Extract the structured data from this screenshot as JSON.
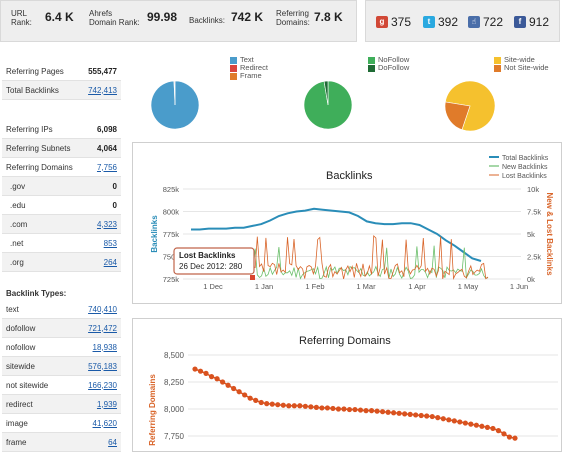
{
  "metrics": {
    "url_rank": {
      "label1": "URL",
      "label2": "Rank:",
      "value": "6.4 K"
    },
    "domain_rank": {
      "label1": "Ahrefs",
      "label2": "Domain Rank:",
      "value": "99.98"
    },
    "backlinks": {
      "label": "Backlinks:",
      "value": "742 K"
    },
    "ref_domains": {
      "label1": "Referring",
      "label2": "Domains:",
      "value": "7.8 K"
    }
  },
  "social": {
    "google": "375",
    "twitter": "392",
    "like": "722",
    "facebook": "912",
    "colors": {
      "google": "#d14836",
      "twitter": "#2aa9e0",
      "like": "#4a6ea9",
      "facebook": "#3b5998"
    }
  },
  "summary_table": [
    {
      "label": "Referring Pages",
      "value": "555,477",
      "link": false
    },
    {
      "label": "Total Backlinks",
      "value": "742,413",
      "link": true
    }
  ],
  "ip_table": [
    {
      "label": "Referring IPs",
      "value": "6,098",
      "link": false
    },
    {
      "label": "Referring Subnets",
      "value": "4,064",
      "link": false
    },
    {
      "label": "Referring Domains",
      "value": "7,756",
      "link": true
    },
    {
      "label": ".gov",
      "value": "0",
      "link": false
    },
    {
      "label": ".edu",
      "value": "0",
      "link": false
    },
    {
      "label": ".com",
      "value": "4,323",
      "link": true
    },
    {
      "label": ".net",
      "value": "853",
      "link": true
    },
    {
      "label": ".org",
      "value": "264",
      "link": true
    }
  ],
  "types_title": "Backlink Types:",
  "types_table": [
    {
      "label": "text",
      "value": "740,410"
    },
    {
      "label": "dofollow",
      "value": "721,472"
    },
    {
      "label": "nofollow",
      "value": "18,938"
    },
    {
      "label": "sitewide",
      "value": "576,183"
    },
    {
      "label": "not sitewide",
      "value": "166,230"
    },
    {
      "label": "redirect",
      "value": "1,939"
    },
    {
      "label": "image",
      "value": "41,620"
    },
    {
      "label": "frame",
      "value": "64"
    }
  ],
  "pies": {
    "legend1": [
      {
        "label": "Text",
        "color": "#4a9ccb"
      },
      {
        "label": "Redirect",
        "color": "#d9453d"
      },
      {
        "label": "Frame",
        "color": "#e07b2a"
      }
    ],
    "legend2": [
      {
        "label": "NoFollow",
        "color": "#3fae5a"
      },
      {
        "label": "DoFollow",
        "color": "#1f6b35"
      }
    ],
    "legend3": [
      {
        "label": "Site-wide",
        "color": "#f5c12e"
      },
      {
        "label": "Not Site-wide",
        "color": "#e07b2a"
      }
    ],
    "pie1_fractions": [
      0.993,
      0.005,
      0.002
    ],
    "pie2_fractions": [
      0.974,
      0.026
    ],
    "pie3_fractions": [
      0.776,
      0.224
    ]
  },
  "backlinks_chart": {
    "title": "Backlinks",
    "ylabel_left": "Backlinks",
    "ylabel_right": "New & Lost Backlinks",
    "left_ticks": [
      "825k",
      "800k",
      "775k",
      "750k",
      "725k"
    ],
    "right_ticks": [
      "10k",
      "7.5k",
      "5k",
      "2.5k",
      "0k"
    ],
    "x_ticks": [
      "1 Dec",
      "1 Jan",
      "1 Feb",
      "1 Mar",
      "1 Apr",
      "1 May",
      "1 Jun"
    ],
    "legend": [
      {
        "label": "Total Backlinks",
        "color": "#2a8db8"
      },
      {
        "label": "New Backlinks",
        "color": "#4caf50"
      },
      {
        "label": "Lost Backlinks",
        "color": "#d9652a"
      }
    ],
    "tooltip_title": "Lost Backlinks",
    "tooltip_value": "26 Dec 2012: 280",
    "total_series": [
      780,
      780,
      781,
      781,
      781,
      782,
      782,
      784,
      786,
      790,
      795,
      798,
      800,
      801,
      803,
      802,
      801,
      800,
      799,
      795,
      789,
      787,
      786,
      786,
      787,
      787,
      785,
      780,
      775,
      768,
      762,
      755,
      748,
      745
    ]
  },
  "refdomains_chart": {
    "title": "Referring Domains",
    "ylabel": "Referring Domains",
    "ticks": [
      "8,500",
      "8,250",
      "8,000",
      "7,750"
    ],
    "series": [
      8370,
      8350,
      8330,
      8300,
      8280,
      8250,
      8220,
      8190,
      8160,
      8130,
      8100,
      8080,
      8060,
      8050,
      8045,
      8040,
      8035,
      8030,
      8030,
      8030,
      8025,
      8020,
      8015,
      8010,
      8010,
      8005,
      8000,
      8000,
      7995,
      7995,
      7990,
      7985,
      7985,
      7980,
      7975,
      7970,
      7965,
      7960,
      7955,
      7950,
      7945,
      7940,
      7935,
      7930,
      7920,
      7910,
      7900,
      7890,
      7880,
      7870,
      7860,
      7850,
      7840,
      7830,
      7820,
      7800,
      7770,
      7740,
      7730
    ]
  }
}
